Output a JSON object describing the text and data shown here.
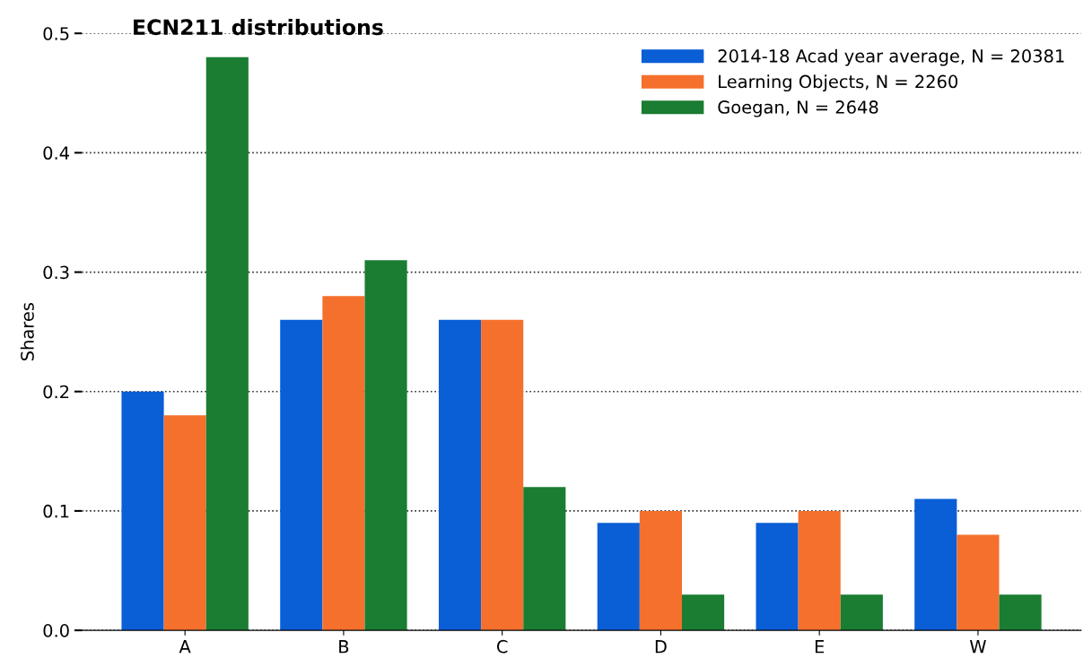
{
  "chart_data": {
    "type": "bar",
    "title": "ECN211 distributions",
    "ylabel": "Shares",
    "categories": [
      "A",
      "B",
      "C",
      "D",
      "E",
      "W"
    ],
    "series": [
      {
        "name": "2014-18 Acad year average, N = 20381",
        "color": "#0a5ed6",
        "values": [
          0.2,
          0.26,
          0.26,
          0.09,
          0.09,
          0.11
        ]
      },
      {
        "name": "Learning Objects, N = 2260",
        "color": "#f5702c",
        "values": [
          0.18,
          0.28,
          0.26,
          0.1,
          0.1,
          0.08
        ]
      },
      {
        "name": "Goegan, N = 2648",
        "color": "#1a7d32",
        "values": [
          0.48,
          0.31,
          0.12,
          0.03,
          0.03,
          0.03
        ]
      }
    ],
    "ylim": [
      0,
      0.5
    ],
    "yticks": [
      {
        "value": 0,
        "label": "0.0"
      },
      0.1,
      0.2,
      0.3,
      0.4,
      0.5
    ],
    "grid": "y",
    "legend": "top right"
  }
}
